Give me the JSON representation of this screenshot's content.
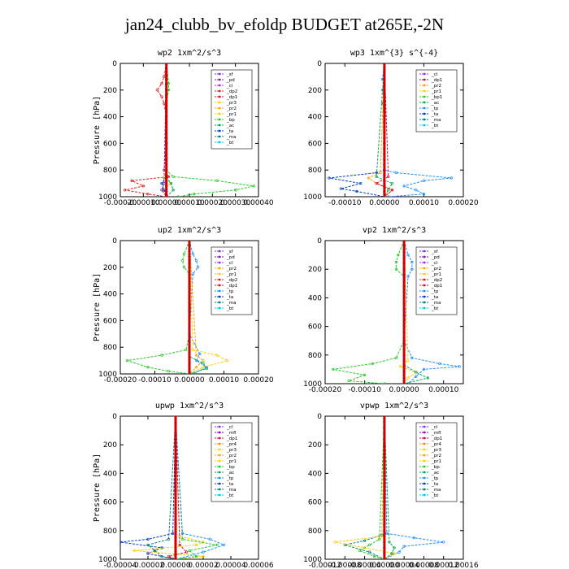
{
  "title": "jan24_clubb_bv_efoldp  BUDGET at265E,-2N",
  "colors": {
    "sf": "#8a2be2",
    "pd": "#7b1fa2",
    "cl": "#9b30ff",
    "dp": "#e02020",
    "dp2": "#e02020",
    "dp1": "#d0103a",
    "pr1": "#ffcc00",
    "pr2": "#ffa500",
    "pr3": "#ffd000",
    "pr4": "#ff8c00",
    "bp": "#22cc22",
    "ac": "#00aa55",
    "tp": "#1e90ff",
    "ta": "#003cc8",
    "ma": "#008080",
    "bt": "#00c8e6",
    "mfl": "#9400d3",
    "main": "#cc0000"
  },
  "chart_data": [
    {
      "type": "line",
      "title": "wp2    1xm^2/s^3",
      "ylabel": "Pressure  [hPa]",
      "xlim": [
        -0.0002,
        0.0004
      ],
      "ylim": [
        1000,
        0
      ],
      "xticks": [
        -0.0002,
        -0.0001,
        0.0,
        0.0001,
        0.0002,
        0.0003,
        0.0004
      ],
      "xtick_labels": [
        "-0.00020",
        "-0.00010",
        "0.00000",
        "0.00010",
        "0.00020",
        "0.00030",
        "0.00040"
      ],
      "yticks": [
        0,
        200,
        400,
        600,
        800,
        1000
      ],
      "legend": [
        "_sf",
        "_pd",
        "_cl",
        "_dp2",
        "_dp1",
        "_pr3",
        "_pr2",
        "_pr1",
        "_bp",
        "_ac",
        "_ta",
        "_ma",
        "_bt"
      ],
      "series": [
        {
          "name": "_dp2",
          "color": "dp",
          "p": [
            0,
            100,
            150,
            200,
            250,
            300,
            400,
            600,
            800,
            850,
            880,
            920,
            950,
            980,
            1000
          ],
          "v": [
            0,
            -1e-05,
            -2e-05,
            -4e-05,
            -2e-05,
            -1e-05,
            0,
            0,
            -1e-05,
            1e-05,
            -0.00015,
            -0.0001,
            -0.00018,
            -8e-05,
            0
          ]
        },
        {
          "name": "_bp",
          "color": "bp",
          "p": [
            0,
            150,
            200,
            300,
            600,
            800,
            850,
            880,
            920,
            950,
            980,
            1000
          ],
          "v": [
            0,
            1e-05,
            1e-05,
            0,
            0,
            0,
            3e-05,
            0.00022,
            0.00038,
            0.0003,
            0.00012,
            5e-05
          ]
        },
        {
          "name": "_pr1",
          "color": "pr1",
          "p": [
            0,
            800,
            860,
            900,
            950,
            1000
          ],
          "v": [
            0,
            0,
            -1e-05,
            2e-05,
            -2e-05,
            0
          ]
        },
        {
          "name": "_ac",
          "color": "ac",
          "p": [
            0,
            850,
            900,
            950,
            1000
          ],
          "v": [
            0,
            0,
            2e-05,
            3e-05,
            0
          ]
        },
        {
          "name": "_ta",
          "color": "ta",
          "p": [
            0,
            850,
            900,
            950,
            1000
          ],
          "v": [
            0,
            0,
            -2e-05,
            -1e-05,
            0
          ]
        },
        {
          "name": "_pd",
          "color": "pd",
          "p": [
            0,
            900,
            950,
            1000
          ],
          "v": [
            0,
            -1e-05,
            -2e-05,
            0
          ]
        },
        {
          "name": "_bt",
          "color": "main",
          "p": [
            0,
            500,
            1000
          ],
          "v": [
            0,
            0,
            0
          ]
        }
      ]
    },
    {
      "type": "line",
      "title": "wp3    1xm^{3} s^{-4}",
      "ylabel": "",
      "xlim": [
        -0.00015,
        0.0002
      ],
      "ylim": [
        1000,
        0
      ],
      "xticks": [
        -0.0001,
        0.0,
        0.0001,
        0.0002
      ],
      "xtick_labels": [
        "-0.00010",
        "0.00000",
        "0.00010",
        "0.00020"
      ],
      "yticks": [
        0,
        200,
        400,
        600,
        800,
        1000
      ],
      "legend": [
        "_cl",
        "_dp1",
        "_pr2",
        "_pr1",
        "_bp1",
        "_ac",
        "_tp",
        "_ta",
        "_ma",
        "_bt"
      ],
      "series": [
        {
          "name": "_tp",
          "color": "tp",
          "p": [
            0,
            120,
            150,
            200,
            250,
            300,
            350,
            600,
            800,
            820,
            860,
            880,
            920,
            950,
            980,
            1000
          ],
          "v": [
            0,
            -5e-06,
            0,
            -5e-06,
            0,
            -5e-06,
            0,
            0,
            0,
            3e-05,
            0.00017,
            0.0001,
            5e-05,
            8e-05,
            0.0001,
            1e-05
          ]
        },
        {
          "name": "_ta",
          "color": "ta",
          "p": [
            0,
            800,
            820,
            860,
            900,
            940,
            960,
            1000
          ],
          "v": [
            0,
            0,
            -2e-05,
            -0.00014,
            -6e-05,
            -0.00011,
            -7e-05,
            0
          ]
        },
        {
          "name": "_pr2",
          "color": "pr2",
          "p": [
            0,
            820,
            860,
            900,
            950,
            1000
          ],
          "v": [
            0,
            -1e-05,
            -4e-05,
            -2e-05,
            2e-05,
            0
          ]
        },
        {
          "name": "_ac",
          "color": "ac",
          "p": [
            0,
            850,
            900,
            950,
            1000
          ],
          "v": [
            0,
            -2e-05,
            2e-05,
            1e-05,
            0
          ]
        },
        {
          "name": "_dp1",
          "color": "dp1",
          "p": [
            0,
            850,
            900,
            950,
            1000
          ],
          "v": [
            0,
            1e-05,
            -2e-05,
            2e-05,
            0
          ]
        },
        {
          "name": "_bt",
          "color": "main",
          "p": [
            0,
            500,
            1000
          ],
          "v": [
            0,
            0,
            0
          ]
        }
      ]
    },
    {
      "type": "line",
      "title": "up2    1xm^2/s^3",
      "ylabel": "Pressure  [hPa]",
      "xlim": [
        -0.0002,
        0.0002
      ],
      "ylim": [
        1000,
        0
      ],
      "xticks": [
        -0.0002,
        -0.0001,
        0.0,
        0.0001,
        0.0002
      ],
      "xtick_labels": [
        "-0.00020",
        "-0.00010",
        "0.00000",
        "0.00010",
        "0.00020"
      ],
      "yticks": [
        0,
        200,
        400,
        600,
        800,
        1000
      ],
      "legend": [
        "_sf",
        "_pd",
        "_cl",
        "_pr2",
        "_pr1",
        "_dp2",
        "_dp1",
        "_tp",
        "_ta",
        "_ma",
        "_bt"
      ],
      "series": [
        {
          "name": "_bp",
          "color": "bp",
          "p": [
            0,
            100,
            150,
            200,
            250,
            700,
            820,
            860,
            900,
            950,
            980,
            1000
          ],
          "v": [
            0,
            -1.5e-05,
            -2e-05,
            -1.5e-05,
            0,
            0,
            -1e-05,
            -8e-05,
            -0.00018,
            -0.00012,
            -6e-05,
            0
          ]
        },
        {
          "name": "_tp",
          "color": "tp",
          "p": [
            0,
            100,
            150,
            200,
            250,
            700,
            850,
            900,
            950,
            1000
          ],
          "v": [
            0,
            1e-05,
            2e-05,
            2.5e-05,
            1e-05,
            0,
            3e-05,
            2e-05,
            5e-05,
            1e-05
          ]
        },
        {
          "name": "_pr1",
          "color": "pr1",
          "p": [
            0,
            820,
            860,
            900,
            950,
            1000
          ],
          "v": [
            0,
            1e-05,
            8e-05,
            0.00011,
            4e-05,
            0
          ]
        },
        {
          "name": "_pr2",
          "color": "pr2",
          "p": [
            0,
            860,
            900,
            950,
            1000
          ],
          "v": [
            0,
            2e-05,
            4e-05,
            2e-05,
            0
          ]
        },
        {
          "name": "_ac",
          "color": "ac",
          "p": [
            0,
            870,
            920,
            960,
            1000
          ],
          "v": [
            0,
            0,
            4e-05,
            5e-05,
            0
          ]
        },
        {
          "name": "_bt",
          "color": "main",
          "p": [
            0,
            500,
            1000
          ],
          "v": [
            0,
            0,
            0
          ]
        }
      ]
    },
    {
      "type": "line",
      "title": "vp2    1xm^2/s^3",
      "ylabel": "",
      "xlim": [
        -0.0002,
        0.00015
      ],
      "ylim": [
        1000,
        0
      ],
      "xticks": [
        -0.0002,
        -0.0001,
        0.0,
        0.0001
      ],
      "xtick_labels": [
        "-0.00020",
        "-0.00010",
        "0.00000",
        "0.00010"
      ],
      "yticks": [
        0,
        200,
        400,
        600,
        800,
        1000
      ],
      "legend": [
        "_sf",
        "_pd",
        "_cl",
        "_pr2",
        "_pr1",
        "_dp2",
        "_dp1",
        "_tp",
        "_ta",
        "_ma",
        "_bt"
      ],
      "series": [
        {
          "name": "_bp",
          "color": "bp",
          "p": [
            0,
            100,
            150,
            200,
            250,
            700,
            820,
            860,
            900,
            940,
            980,
            1000
          ],
          "v": [
            0,
            -1.5e-05,
            -2e-05,
            -2e-05,
            0,
            0,
            -2e-05,
            -8e-05,
            -0.00018,
            -0.0001,
            -0.00014,
            -5e-05
          ]
        },
        {
          "name": "_tp",
          "color": "tp",
          "p": [
            0,
            100,
            150,
            200,
            250,
            700,
            820,
            860,
            880,
            900,
            950,
            1000
          ],
          "v": [
            0,
            1e-05,
            2e-05,
            2e-05,
            1e-05,
            0,
            2e-05,
            9e-05,
            0.00014,
            5e-05,
            3e-05,
            1e-05
          ]
        },
        {
          "name": "_pr1",
          "color": "pr1",
          "p": [
            0,
            840,
            880,
            920,
            960,
            1000
          ],
          "v": [
            0,
            1e-05,
            -1e-05,
            3e-05,
            1e-05,
            0
          ]
        },
        {
          "name": "_ac",
          "color": "ac",
          "p": [
            0,
            870,
            920,
            960,
            1000
          ],
          "v": [
            0,
            0,
            3e-05,
            6e-05,
            0
          ]
        },
        {
          "name": "_bt",
          "color": "main",
          "p": [
            0,
            500,
            1000
          ],
          "v": [
            0,
            0,
            0
          ]
        }
      ]
    },
    {
      "type": "line",
      "title": "upwp    1xm^2/s^3",
      "ylabel": "Pressure  [hPa]",
      "xlim": [
        -4e-05,
        6e-05
      ],
      "ylim": [
        1000,
        0
      ],
      "xticks": [
        -4e-05,
        -2e-05,
        0.0,
        2e-05,
        4e-05,
        6e-05
      ],
      "xtick_labels": [
        "-0.00004",
        "-0.00002",
        "0.00000",
        "0.00002",
        "0.00004",
        "0.00006"
      ],
      "yticks": [
        0,
        200,
        400,
        600,
        800,
        1000
      ],
      "legend": [
        "_cl",
        "_mfl",
        "_dp1",
        "_pr4",
        "_pr3",
        "_pr2",
        "_pr1",
        "_bp",
        "_ac",
        "_tp",
        "_ta",
        "_ma",
        "_bt"
      ],
      "series": [
        {
          "name": "_ta",
          "color": "ta",
          "p": [
            0,
            820,
            860,
            880,
            920,
            960,
            1000
          ],
          "v": [
            0,
            -2e-06,
            -2e-05,
            -4e-05,
            -1e-05,
            -2e-05,
            0
          ]
        },
        {
          "name": "_pr1",
          "color": "pr1",
          "p": [
            0,
            840,
            880,
            900,
            940,
            980,
            1000
          ],
          "v": [
            0,
            3e-06,
            2e-05,
            1.5e-05,
            -3e-05,
            2e-05,
            0
          ]
        },
        {
          "name": "_bp",
          "color": "bp",
          "p": [
            0,
            860,
            900,
            940,
            980,
            1000
          ],
          "v": [
            0,
            5e-06,
            3e-05,
            1e-05,
            1.5e-05,
            0
          ]
        },
        {
          "name": "_tp",
          "color": "tp",
          "p": [
            0,
            820,
            860,
            900,
            950,
            1000
          ],
          "v": [
            0,
            5e-06,
            2.5e-05,
            3.5e-05,
            2e-05,
            0
          ]
        },
        {
          "name": "_ma",
          "color": "ma",
          "p": [
            0,
            860,
            900,
            940,
            980,
            1000
          ],
          "v": [
            0,
            -5e-06,
            -2e-05,
            -1.5e-05,
            -1e-05,
            0
          ]
        },
        {
          "name": "_dp1",
          "color": "dp1",
          "p": [
            0,
            900,
            950,
            980,
            1000
          ],
          "v": [
            0,
            3e-06,
            8e-06,
            -5e-06,
            0
          ]
        },
        {
          "name": "_bt",
          "color": "main",
          "p": [
            0,
            500,
            1000
          ],
          "v": [
            0,
            0,
            0
          ]
        }
      ]
    },
    {
      "type": "line",
      "title": "vpwp    1xm^2/s^3",
      "ylabel": "",
      "xlim": [
        -0.00012,
        0.00016
      ],
      "ylim": [
        1000,
        0
      ],
      "xticks": [
        -0.00012,
        -8e-05,
        -4e-05,
        0.0,
        4e-05,
        8e-05,
        0.00012,
        0.00016
      ],
      "xtick_labels": [
        "-0.00012",
        "-0.00008",
        "-0.00004",
        "0.00000",
        "0.00004",
        "0.00008",
        "0.00012",
        "0.00016"
      ],
      "yticks": [
        0,
        200,
        400,
        600,
        800,
        1000
      ],
      "legend": [
        "_cl",
        "_mfl",
        "_dp1",
        "_pr4",
        "_pr3",
        "_pr2",
        "_pr1",
        "_bp",
        "_ac",
        "_tp",
        "_ta",
        "_ma",
        "_bt"
      ],
      "series": [
        {
          "name": "_tp",
          "color": "tp",
          "p": [
            0,
            820,
            850,
            880,
            910,
            950,
            1000
          ],
          "v": [
            0,
            5e-06,
            6e-05,
            0.00012,
            4e-05,
            3e-05,
            0
          ]
        },
        {
          "name": "_ma",
          "color": "ma",
          "p": [
            0,
            830,
            870,
            900,
            950,
            1000
          ],
          "v": [
            0,
            -5e-06,
            -4e-05,
            -8e-05,
            -3e-05,
            0
          ]
        },
        {
          "name": "_pr1",
          "color": "pr1",
          "p": [
            0,
            840,
            880,
            920,
            960,
            1000
          ],
          "v": [
            0,
            -5e-06,
            -0.0001,
            -4e-05,
            2e-05,
            0
          ]
        },
        {
          "name": "_bp",
          "color": "bp",
          "p": [
            0,
            860,
            900,
            940,
            980,
            1000
          ],
          "v": [
            0,
            -1e-05,
            -3e-05,
            -5e-05,
            -2e-05,
            0
          ]
        },
        {
          "name": "_ac",
          "color": "ac",
          "p": [
            0,
            880,
            920,
            960,
            1000
          ],
          "v": [
            0,
            1e-05,
            2e-05,
            1.5e-05,
            0
          ]
        },
        {
          "name": "_bt",
          "color": "main",
          "p": [
            0,
            500,
            1000
          ],
          "v": [
            0,
            0,
            0
          ]
        }
      ]
    }
  ]
}
